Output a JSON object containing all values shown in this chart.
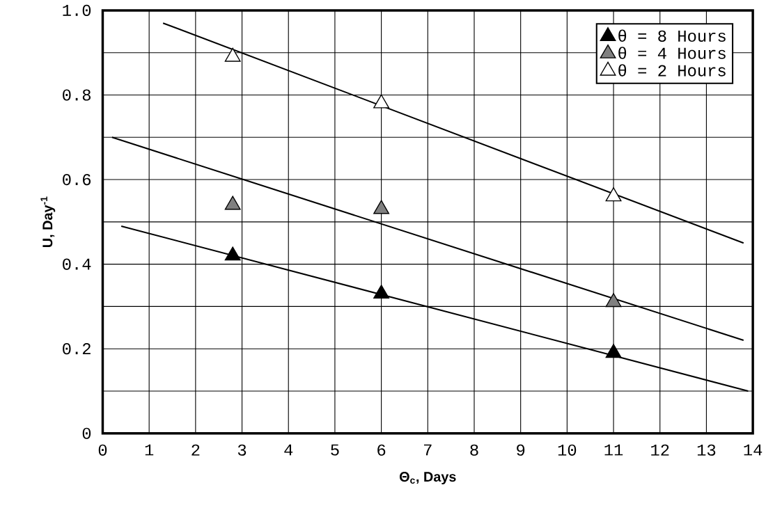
{
  "chart_data": {
    "type": "scatter",
    "xlabel": "Θ$_{c}$,    Days",
    "ylabel": "U, Day$^{-1}$",
    "xlim": [
      0,
      14
    ],
    "ylim": [
      0,
      1.0
    ],
    "xticks": [
      0,
      1,
      2,
      3,
      4,
      5,
      6,
      7,
      8,
      9,
      10,
      11,
      12,
      13,
      14
    ],
    "yticks": [
      0,
      {
        "value": 0.1,
        "label": null
      },
      0.2,
      {
        "value": 0.3,
        "label": null
      },
      0.4,
      {
        "value": 0.5,
        "label": null
      },
      0.6,
      {
        "value": 0.7,
        "label": null
      },
      0.8,
      {
        "value": 0.9,
        "label": null
      },
      {
        "value": 1.0,
        "label": "1.0"
      }
    ],
    "grid": true,
    "legend": "top right",
    "marker": "triangle",
    "series": [
      {
        "name": "θ = 8 Hours",
        "color": "#000000",
        "x": [
          2.8,
          6,
          11
        ],
        "values": [
          0.42,
          0.33,
          0.19
        ]
      },
      {
        "name": "θ = 4 Hours",
        "color": "#808080",
        "x": [
          2.8,
          6,
          11
        ],
        "values": [
          0.54,
          0.53,
          0.31
        ]
      },
      {
        "name": "θ = 2 Hours",
        "color": "#ffffff",
        "x": [
          2.8,
          6,
          11
        ],
        "values": [
          0.89,
          0.78,
          0.56
        ]
      },
      {
        "type": "line",
        "marker": "none",
        "color": "#000000",
        "x": [
          0.4,
          13.9
        ],
        "values": [
          0.49,
          0.1
        ]
      },
      {
        "type": "line",
        "marker": "none",
        "color": "#000000",
        "x": [
          0.2,
          13.8
        ],
        "values": [
          0.7,
          0.22
        ]
      },
      {
        "type": "line",
        "marker": "none",
        "color": "#000000",
        "x": [
          1.3,
          13.8
        ],
        "values": [
          0.97,
          0.45
        ]
      }
    ]
  }
}
